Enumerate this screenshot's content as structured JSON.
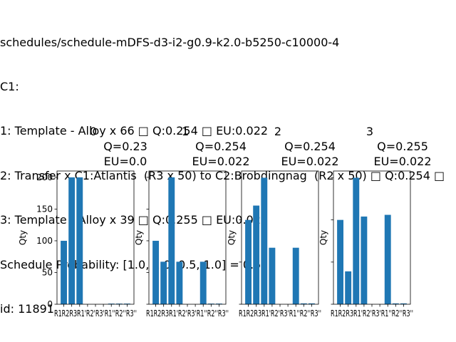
{
  "header": {
    "lines": [
      "schedules/schedule-mDFS-d3-i2-g0.9-k2.0-b5250-c10000-4",
      "C1:",
      "1: Template - Alloy x 66 □ Q:0.254 □ EU:0.022",
      "2: Transfer x C1:Atlantis  (R3 x 50) to C2:Brobdingnag  (R2 x 50) □ Q:0.254 □",
      "3: Template - Alloy x 39 □ Q:0.255 □ EU:0.022",
      "Schedule Probability: [1.0, 1.0, 0.5, 1.0] = 0.5",
      "id: 11891"
    ]
  },
  "chart_data": [
    {
      "type": "bar",
      "title": [
        "0",
        "Q=0.23",
        "EU=0.0"
      ],
      "ylabel": "Qty",
      "ylim": [
        0,
        210
      ],
      "yticks": [
        0,
        50,
        100,
        150,
        200
      ],
      "categories": [
        "R1",
        "R2",
        "R3",
        "R1'",
        "R2'",
        "R3'",
        "R1''",
        "R2''",
        "R3''"
      ],
      "xtick_text": "R1R2R3R1'R2'R3'R1''R2''R3''",
      "values": [
        100,
        200,
        200,
        0,
        0,
        0,
        1,
        1,
        1
      ]
    },
    {
      "type": "bar",
      "title": [
        "1",
        "Q=0.254",
        "EU=0.022"
      ],
      "ylabel": "Qty",
      "ylim": [
        0,
        210
      ],
      "yticks": [
        0,
        50,
        100,
        150,
        200
      ],
      "categories": [
        "R1",
        "R2",
        "R3",
        "R1'",
        "R2'",
        "R3'",
        "R1''",
        "R2''",
        "R3''"
      ],
      "xtick_text": "R1R2R3R1'R2'R3'R1''R2''R3''",
      "values": [
        100,
        67,
        200,
        67,
        0,
        0,
        67,
        1,
        1
      ]
    },
    {
      "type": "bar",
      "title": [
        "2",
        "Q=0.254",
        "EU=0.022"
      ],
      "ylabel": "Qty",
      "ylim": [
        0,
        158
      ],
      "yticks": [
        0,
        50,
        100,
        150
      ],
      "categories": [
        "R1",
        "R2",
        "R3",
        "R1'",
        "R2'",
        "R3'",
        "R1''",
        "R2''",
        "R3''"
      ],
      "xtick_text": "R1R2R3R1'R2'R3'R1''R2''R3''",
      "values": [
        100,
        117,
        150,
        67,
        0,
        0,
        67,
        1,
        1
      ]
    },
    {
      "type": "bar",
      "title": [
        "3",
        "Q=0.255",
        "EU=0.022"
      ],
      "ylabel": "Qty",
      "ylim": [
        0,
        158
      ],
      "yticks": [
        0,
        50,
        100,
        150
      ],
      "categories": [
        "R1",
        "R2",
        "R3",
        "R1'",
        "R2'",
        "R3'",
        "R1''",
        "R2''",
        "R3''"
      ],
      "xtick_text": "R1R2R3R1'R2'R3'R1''R2''R3''",
      "values": [
        100,
        39,
        150,
        104,
        0,
        0,
        106,
        1,
        1
      ]
    }
  ],
  "colors": {
    "bar": "#1f77b4",
    "axis": "#000000"
  }
}
